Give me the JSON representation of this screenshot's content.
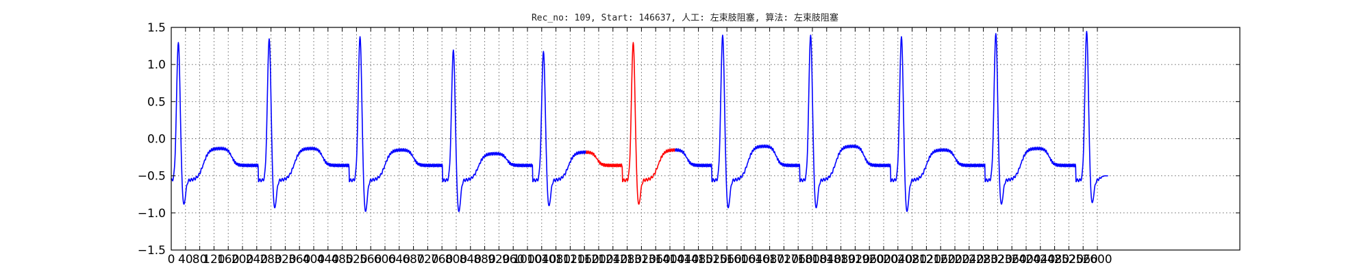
{
  "chart_data": {
    "type": "line",
    "title": "Rec_no: 109, Start: 146637, 人工: 左束肢阻塞, 算法: 左束肢阻塞",
    "xlabel": "",
    "ylabel": "",
    "xlim": [
      0,
      3000
    ],
    "ylim": [
      -1.5,
      1.5
    ],
    "x_ticks": [
      0,
      40,
      80,
      120,
      160,
      200,
      240,
      280,
      320,
      360,
      400,
      440,
      480,
      520,
      560,
      600,
      640,
      680,
      720,
      760,
      800,
      840,
      880,
      920,
      960,
      1000,
      1040,
      1080,
      1120,
      1160,
      1200,
      1240,
      1280,
      1320,
      1360,
      1400,
      1440,
      1480,
      1520,
      1560,
      1600,
      1640,
      1680,
      1720,
      1760,
      1800,
      1840,
      1880,
      1920,
      1960,
      2000,
      2040,
      2080,
      2120,
      2160,
      2200,
      2240,
      2280,
      2320,
      2360,
      2400,
      2440,
      2480,
      2520,
      2560,
      2600
    ],
    "x_tick_labels": [
      "0",
      "40",
      "80",
      "120",
      "160",
      "200",
      "240",
      "280",
      "320",
      "360",
      "400",
      "440",
      "480",
      "520",
      "560",
      "600",
      "640",
      "680",
      "720",
      "760",
      "800",
      "840",
      "880",
      "920",
      "960",
      "1000",
      "1040",
      "1080",
      "1120",
      "1160",
      "1200",
      "1240",
      "1280",
      "1320",
      "1360",
      "1400",
      "1440",
      "1480",
      "1520",
      "1560",
      "1600",
      "1640",
      "1680",
      "1720",
      "1760",
      "1800",
      "1840",
      "1880",
      "1920",
      "1960",
      "2000",
      "2040",
      "2080",
      "2120",
      "2160",
      "2200",
      "2240",
      "2280",
      "2320",
      "2360",
      "2400",
      "2440",
      "2480",
      "2520",
      "2560",
      "2600"
    ],
    "y_ticks": [
      -1.5,
      -1.0,
      -0.5,
      0.0,
      0.5,
      1.0,
      1.5
    ],
    "y_tick_labels": [
      "−1.5",
      "−1.0",
      "−0.5",
      "0.0",
      "0.5",
      "1.0",
      "1.5"
    ],
    "grid": true,
    "colors": {
      "normal": "#0000ff",
      "highlight": "#ff0000"
    },
    "sample_count": 2630,
    "highlight_range": [
      1165,
      1415
    ],
    "r_peaks": [
      20,
      275,
      530,
      792,
      1045,
      1297,
      1548,
      1795,
      2050,
      2315,
      2570
    ],
    "r_peak_amplitudes": [
      1.3,
      1.35,
      1.38,
      1.2,
      1.18,
      1.3,
      1.4,
      1.4,
      1.38,
      1.42,
      1.45
    ],
    "s_trough_amplitudes": [
      -0.9,
      -0.95,
      -1.0,
      -1.0,
      -0.92,
      -0.9,
      -0.95,
      -0.95,
      -1.0,
      -0.9,
      -0.88
    ],
    "t_wave_amplitudes": [
      -0.13,
      -0.13,
      -0.15,
      -0.2,
      -0.18,
      -0.15,
      -0.1,
      -0.1,
      -0.15,
      -0.13,
      -0.05
    ],
    "end_value": -0.5
  }
}
